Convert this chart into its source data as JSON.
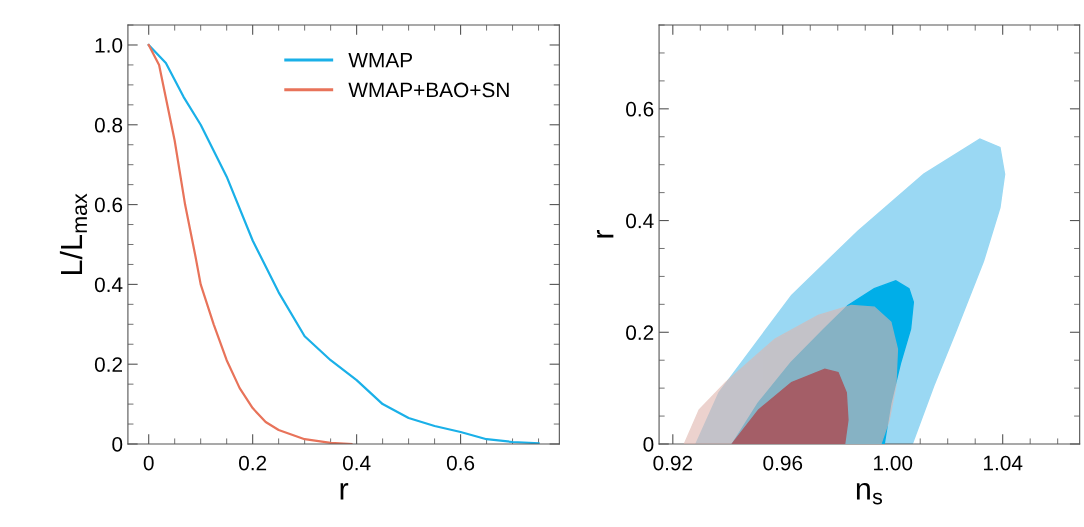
{
  "chart_data": [
    {
      "type": "line",
      "xlabel": "r",
      "ylabel": "L/L$_{max}$",
      "xlim": [
        -0.04,
        0.79
      ],
      "ylim": [
        0,
        1.05
      ],
      "xticks": [
        0,
        0.2,
        0.4,
        0.6
      ],
      "yticks": [
        0,
        0.2,
        0.4,
        0.6,
        0.8,
        {
          "value": 1.0,
          "label": "1.0"
        }
      ],
      "legend": "top right",
      "grid": false,
      "series": [
        {
          "name": "WMAP",
          "color": "#1ab0e8",
          "x": [
            0,
            0.033,
            0.067,
            0.1,
            0.15,
            0.2,
            0.25,
            0.3,
            0.35,
            0.4,
            0.45,
            0.5,
            0.55,
            0.6,
            0.65,
            0.7,
            0.75
          ],
          "values": [
            1,
            0.955,
            0.87,
            0.8,
            0.67,
            0.51,
            0.38,
            0.27,
            0.21,
            0.16,
            0.1,
            0.065,
            0.045,
            0.03,
            0.012,
            0.005,
            0.002
          ]
        },
        {
          "name": "WMAP+BAO+SN",
          "color": "#e8735a",
          "x": [
            0,
            0.02,
            0.05,
            0.07,
            0.09,
            0.1,
            0.125,
            0.15,
            0.175,
            0.2,
            0.225,
            0.25,
            0.3,
            0.35,
            0.39
          ],
          "values": [
            1,
            0.95,
            0.76,
            0.6,
            0.47,
            0.4,
            0.3,
            0.21,
            0.14,
            0.09,
            0.055,
            0.035,
            0.012,
            0.003,
            0
          ]
        }
      ]
    },
    {
      "type": "area",
      "xlabel": "n$_{s}$",
      "ylabel": "r",
      "xlim": [
        0.915,
        1.068
      ],
      "ylim": [
        0,
        0.75
      ],
      "xticks": [
        0.92,
        0.96,
        {
          "value": 1.0,
          "label": "1.00"
        },
        1.04
      ],
      "yticks": [
        0,
        0.2,
        0.4,
        0.6
      ],
      "grid": false,
      "series": [
        {
          "color": "#9ad8f3",
          "x": [
            0.9284,
            0.9368,
            0.9632,
            0.9873,
            1.0113,
            1.0317,
            1.039,
            1.0407,
            1.039,
            1.033,
            1.0233,
            1.0149,
            1.0071
          ],
          "values": [
            0,
            0.092,
            0.266,
            0.381,
            0.483,
            0.546,
            0.531,
            0.483,
            0.423,
            0.327,
            0.206,
            0.104,
            0
          ]
        },
        {
          "color": "#00aee8",
          "x": [
            0.9416,
            0.951,
            0.963,
            0.975,
            0.9837,
            0.9933,
            1.0011,
            1.0059,
            1.0075,
            1.0065,
            1.0029,
            0.9993,
            0.9969
          ],
          "values": [
            0,
            0.073,
            0.146,
            0.206,
            0.248,
            0.278,
            0.292,
            0.278,
            0.254,
            0.206,
            0.146,
            0.073,
            0
          ]
        },
        {
          "color": "#dfb5ad",
          "x": [
            0.9242,
            0.9296,
            0.9392,
            0.9572,
            0.9729,
            0.9849,
            0.9933,
            0.9993,
            1.0017,
            1.0011,
            0.9987,
            0.9957
          ],
          "values": [
            0,
            0.061,
            0.11,
            0.188,
            0.23,
            0.248,
            0.245,
            0.218,
            0.17,
            0.104,
            0.043,
            0
          ]
        },
        {
          "color": "#a45e67",
          "x": [
            0.9416,
            0.9512,
            0.9632,
            0.9753,
            0.9801,
            0.9831,
            0.9837,
            0.9825
          ],
          "values": [
            0,
            0.061,
            0.11,
            0.134,
            0.128,
            0.092,
            0.043,
            0
          ]
        }
      ]
    }
  ]
}
